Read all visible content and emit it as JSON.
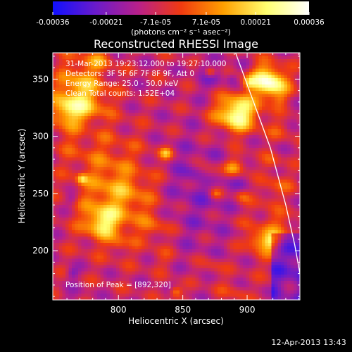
{
  "chart_data": {
    "type": "heatmap",
    "title": "Reconstructed RHESSI Image",
    "xlabel": "Heliocentric X (arcsec)",
    "ylabel": "Heliocentric Y (arcsec)",
    "xlim": [
      749,
      941
    ],
    "ylim": [
      157,
      373
    ],
    "x_ticks": [
      800,
      850,
      900
    ],
    "y_ticks": [
      200,
      250,
      300,
      350
    ],
    "colorbar": {
      "range": [
        -0.00036,
        0.00036
      ],
      "tick_values": [
        -0.00036,
        -0.00021,
        -7.1e-05,
        7.1e-05,
        0.00021,
        0.00036
      ],
      "tick_labels": [
        "-0.00036",
        "-0.00021",
        "-7.1e-05",
        "7.1e-05",
        "0.00021",
        "0.00036"
      ],
      "unit_label": "(photons cm⁻² s⁻¹ asec⁻²)",
      "colors": [
        "#1010ff",
        "#6a1bcb",
        "#b8208a",
        "#f03a10",
        "#ffa000",
        "#ffff70",
        "#ffffff"
      ]
    },
    "annotations": [
      "31-Mar-2013 19:23:12.000 to 19:27:10.000",
      "Detectors: 3F 5F 6F 7F 8F 9F, Att 0",
      "Energy Range: 25.0 - 50.0 keV",
      "Clean    Total counts: 1.52E+04"
    ],
    "peak_label": "Position of Peak = [892,320]",
    "peak_position": [
      892,
      320
    ],
    "limb_curve": [
      [
        891,
        373
      ],
      [
        905,
        330
      ],
      [
        918,
        290
      ],
      [
        930,
        240
      ],
      [
        937,
        205
      ],
      [
        941,
        180
      ]
    ]
  },
  "footer": {
    "date": "12-Apr-2013 13:43"
  },
  "style": {
    "background": "#000000",
    "foreground": "#ffffff"
  }
}
